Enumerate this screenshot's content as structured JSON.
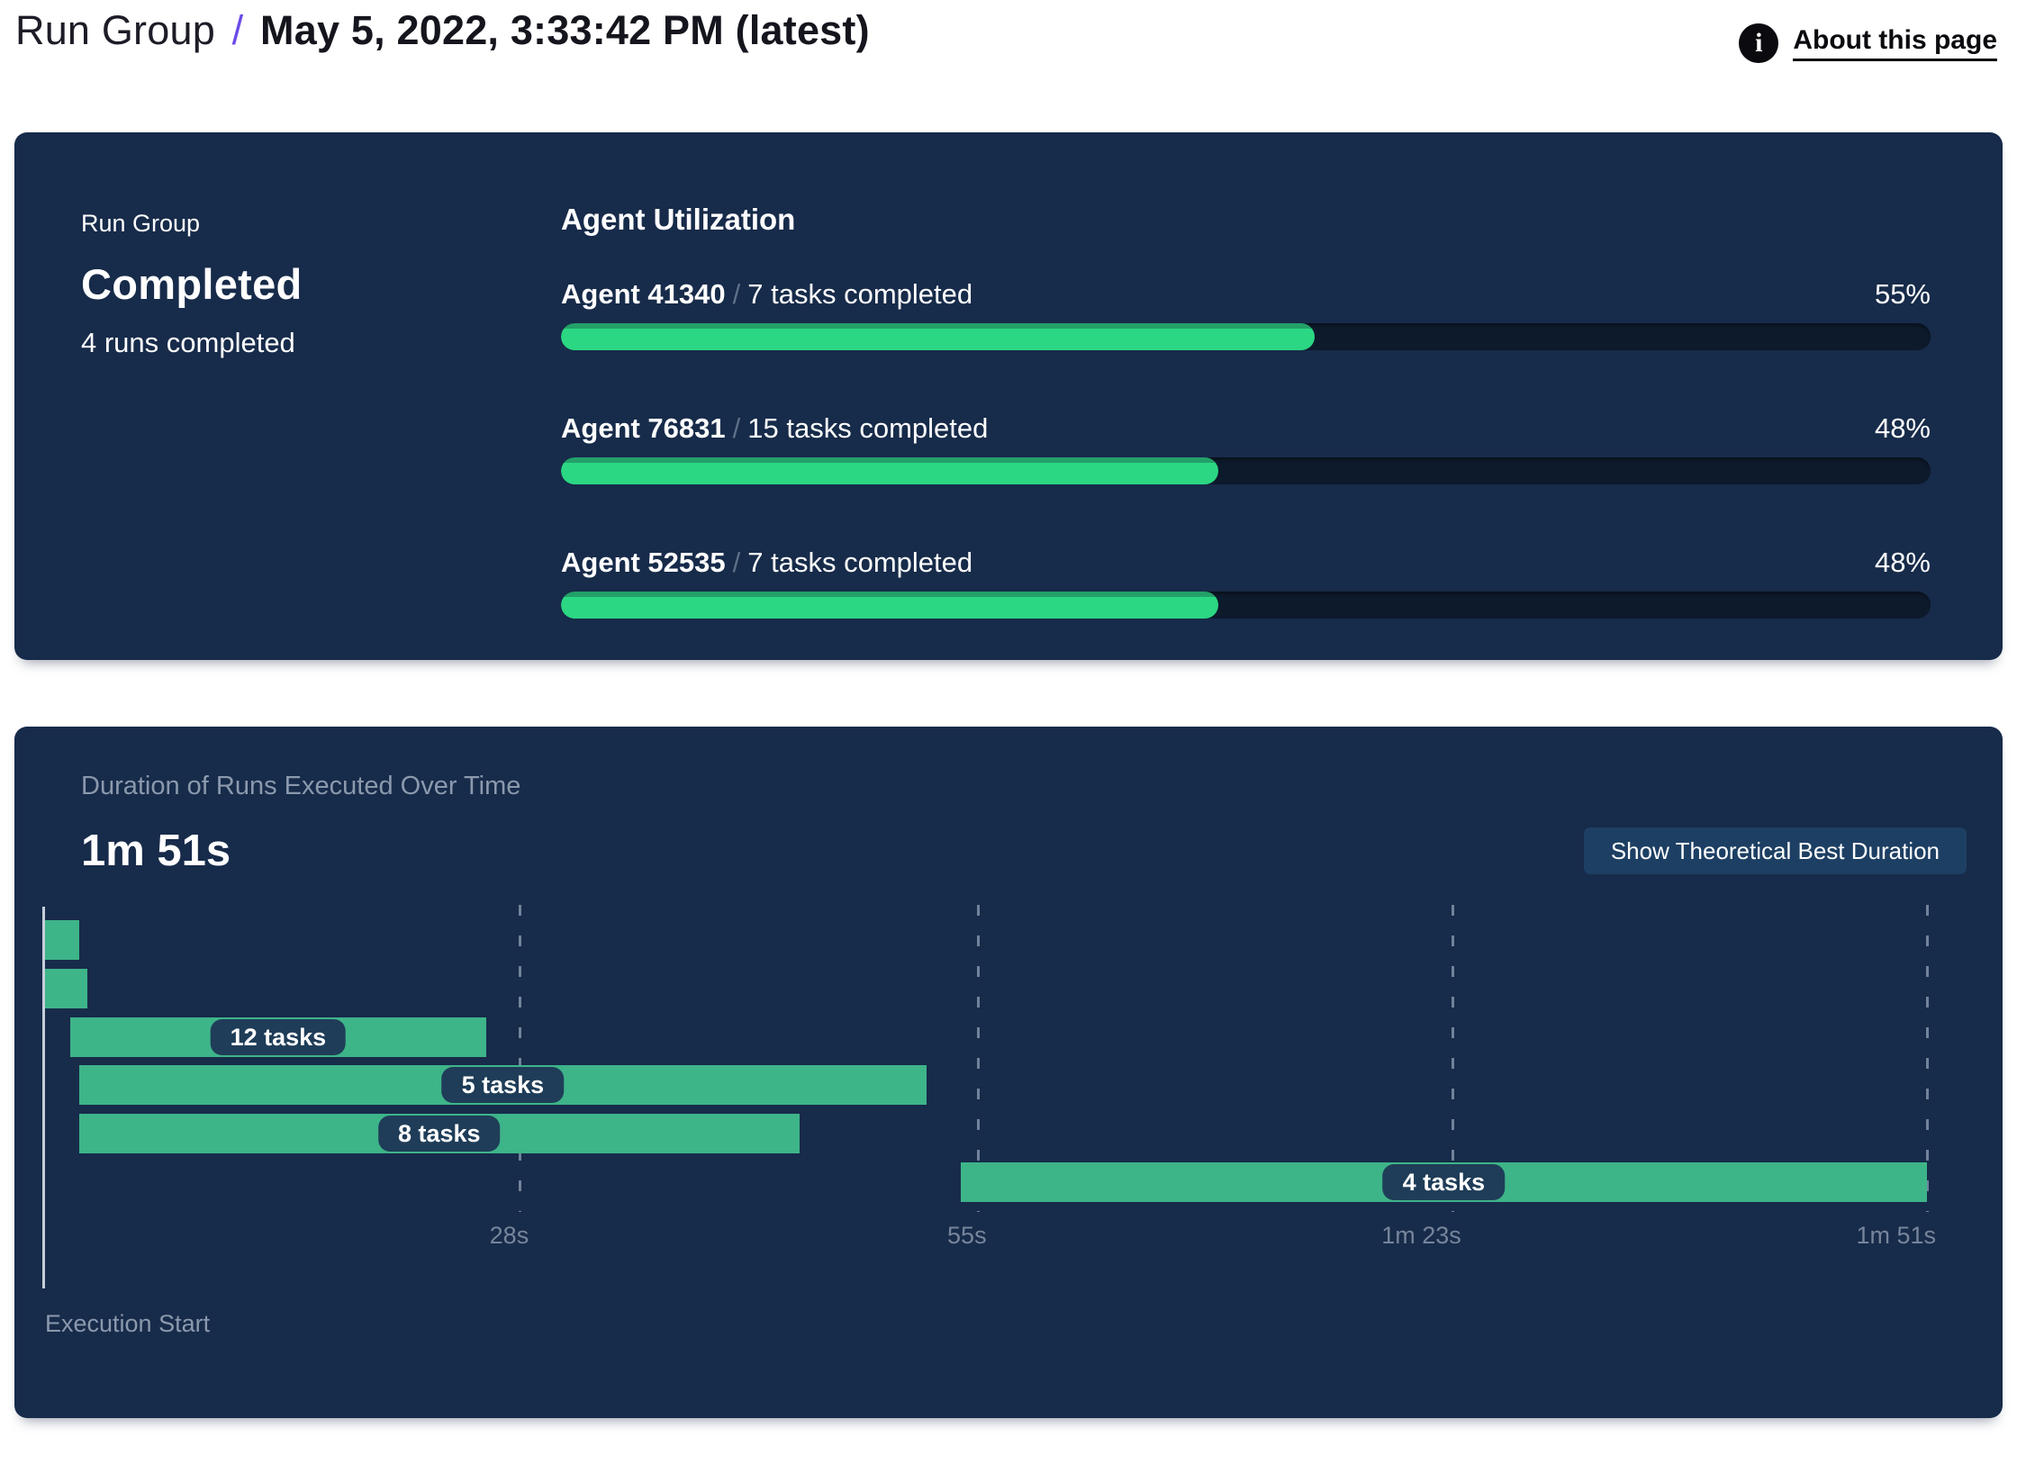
{
  "header": {
    "breadcrumb_root": "Run Group",
    "separator": "/",
    "title": "May 5, 2022, 3:33:42 PM (latest)",
    "about_link": "About this page",
    "info_icon_glyph": "i"
  },
  "summary_card": {
    "kicker": "Run Group",
    "status": "Completed",
    "runs_completed": "4 runs completed",
    "utilization": {
      "title": "Agent Utilization",
      "separator": "/",
      "agents": [
        {
          "name": "Agent 41340",
          "tasks": "7 tasks completed",
          "percent_label": "55%",
          "percent": 55
        },
        {
          "name": "Agent 76831",
          "tasks": "15 tasks completed",
          "percent_label": "48%",
          "percent": 48
        },
        {
          "name": "Agent 52535",
          "tasks": "7 tasks completed",
          "percent_label": "48%",
          "percent": 48
        }
      ]
    }
  },
  "duration_card": {
    "button_label": "Show Theoretical Best Duration"
  },
  "chart_data": {
    "type": "bar",
    "variant": "gantt-timeline",
    "title": "Duration of Runs Executed Over Time",
    "total_duration_label": "1m 51s",
    "x_axis_label": "Execution Start",
    "x_ticks": [
      "28s",
      "55s",
      "1m 23s",
      "1m 51s"
    ],
    "x_tick_seconds": [
      28,
      55,
      83,
      111
    ],
    "xlim": [
      0,
      111
    ],
    "grid": "dashed-vertical",
    "bar_color": "#3EB489",
    "bars": [
      {
        "label": "",
        "start_s": 0,
        "end_s": 2
      },
      {
        "label": "",
        "start_s": 0,
        "end_s": 2.5
      },
      {
        "label": "12 tasks",
        "start_s": 1.5,
        "end_s": 26
      },
      {
        "label": "5 tasks",
        "start_s": 2,
        "end_s": 52
      },
      {
        "label": "8 tasks",
        "start_s": 2,
        "end_s": 44.5
      },
      {
        "label": "4 tasks",
        "start_s": 54,
        "end_s": 111
      }
    ]
  },
  "colors": {
    "card_bg": "#172B4A",
    "track_bg": "#0D1A2C",
    "progress_green": "#2BD783",
    "gantt_green": "#3EB489",
    "accent_purple": "#6C4BE8",
    "muted_text": "#8B99AD",
    "pill_bg": "#1F3D58",
    "button_bg": "#1D3F63"
  }
}
